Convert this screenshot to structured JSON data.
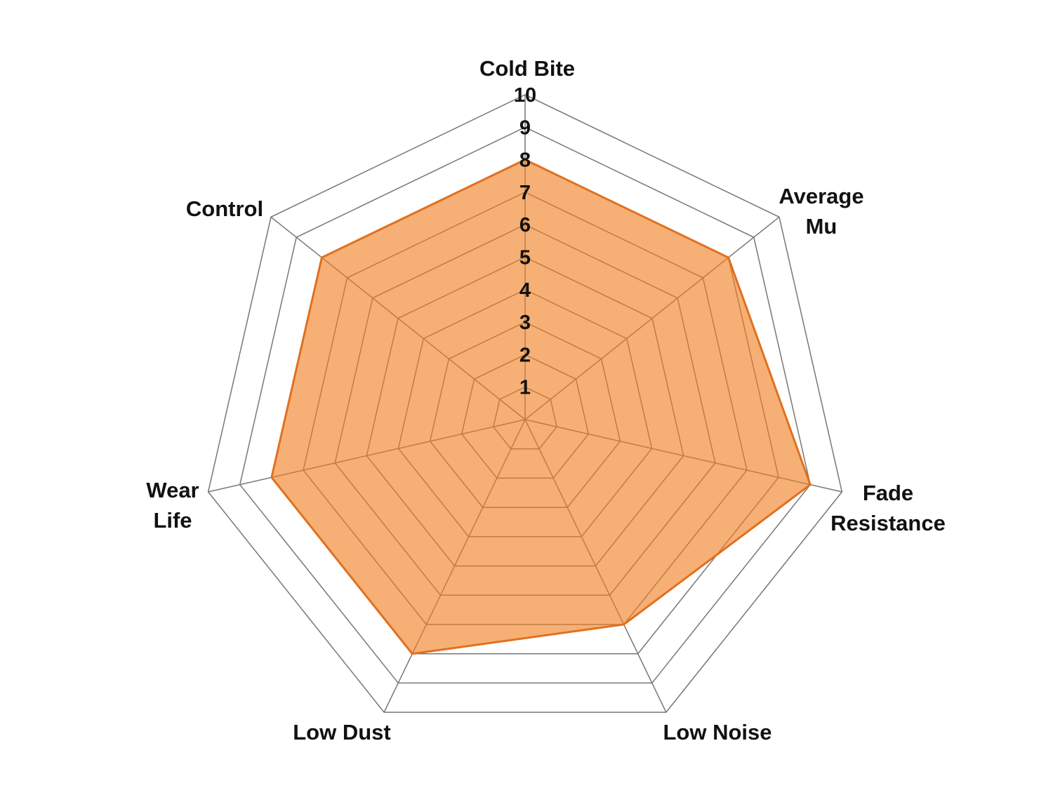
{
  "chart_data": {
    "type": "radar",
    "categories": [
      "Cold Bite",
      "Average Mu",
      "Fade Resistance",
      "Low Noise",
      "Low Dust",
      "Wear Life",
      "Control"
    ],
    "values": [
      8,
      8,
      9,
      7,
      8,
      8,
      8
    ],
    "rlim": [
      0,
      10
    ],
    "ticks": [
      "1",
      "2",
      "3",
      "4",
      "5",
      "6",
      "7",
      "8",
      "9",
      "10"
    ],
    "grid": true,
    "legend": "none",
    "colors": {
      "fill": "#f08020",
      "stroke": "#e07020",
      "grid": "#777777"
    }
  }
}
